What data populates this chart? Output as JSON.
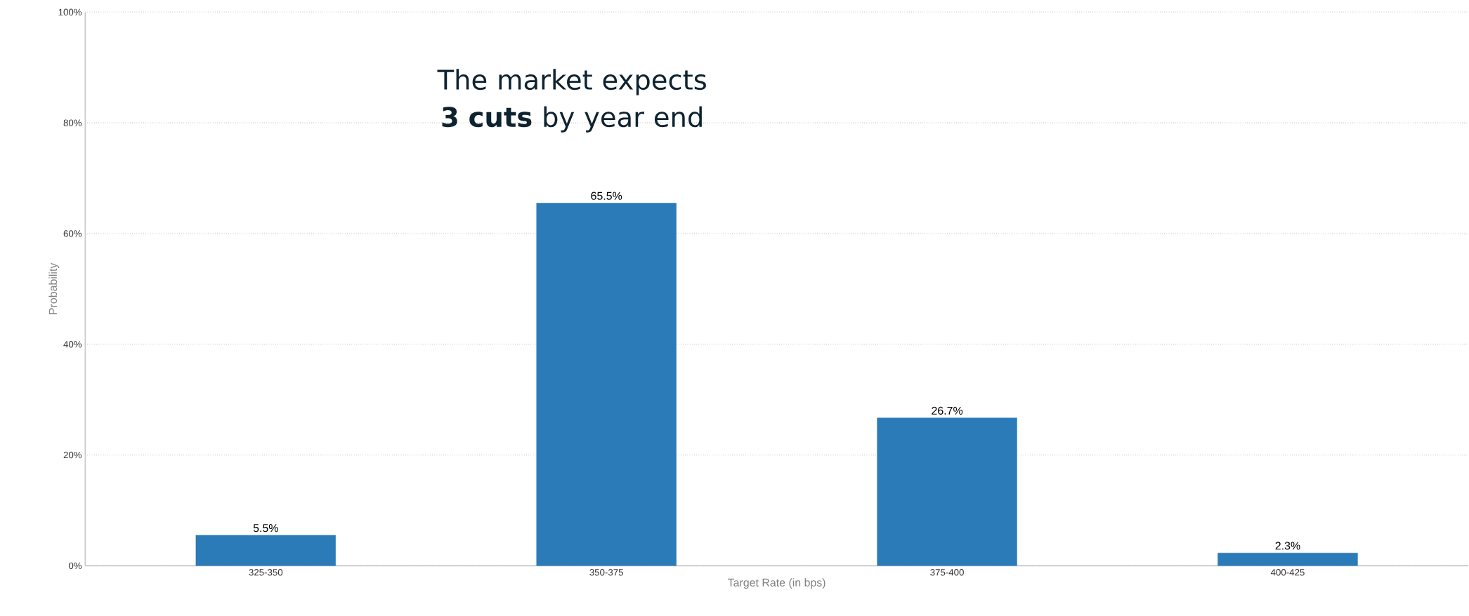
{
  "chart_data": {
    "type": "bar",
    "xlabel": "Target Rate (in bps)",
    "ylabel": "Probability",
    "categories": [
      "325-350",
      "350-375",
      "375-400",
      "400-425"
    ],
    "values": [
      5.5,
      65.5,
      26.7,
      2.3
    ],
    "value_labels": [
      "5.5%",
      "65.5%",
      "26.7%",
      "2.3%"
    ],
    "color": "#2b7bb9",
    "ylim": [
      0,
      100
    ],
    "yticks": [
      {
        "value": 0,
        "label": "0%"
      },
      {
        "value": 20,
        "label": "20%"
      },
      {
        "value": 40,
        "label": "40%"
      },
      {
        "value": 60,
        "label": "60%"
      },
      {
        "value": 80,
        "label": "80%"
      },
      {
        "value": 100,
        "label": "100%"
      }
    ],
    "grid": "y",
    "annotations": [
      "The market expects **3 cuts** by year end"
    ]
  }
}
